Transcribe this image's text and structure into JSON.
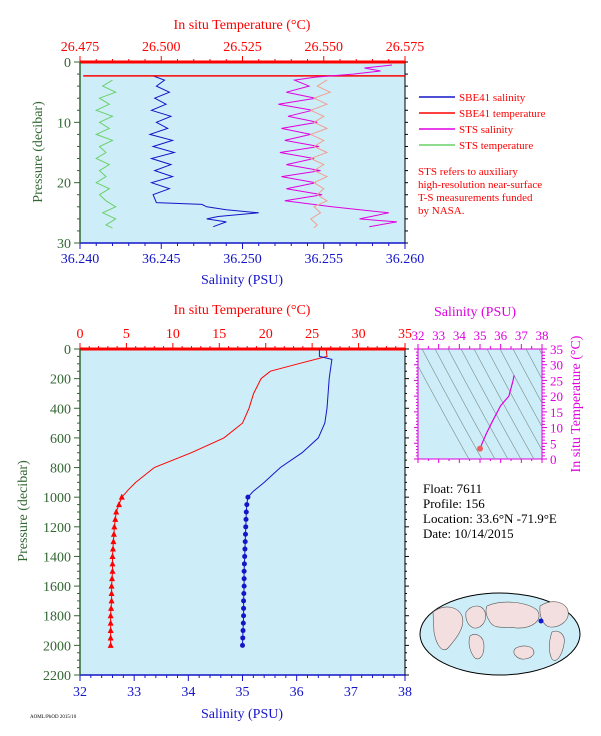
{
  "colors": {
    "red": "#ff0000",
    "blue": "#1515c8",
    "magenta": "#e000e0",
    "green": "#6ad06a",
    "salmon": "#f0a090",
    "darkgreen": "#336633",
    "plotbg": "#cdeef8"
  },
  "chart_data": [
    {
      "type": "line",
      "name": "near-surface profile",
      "title_top": "In situ Temperature (°C)",
      "xlabel": "Salinity (PSU)",
      "ylabel": "Pressure (decibar)",
      "top_ticks": [
        "26.475",
        "26.500",
        "26.525",
        "26.550",
        "26.575"
      ],
      "top_range": [
        26.475,
        26.575
      ],
      "bottom_ticks": [
        "36.240",
        "36.245",
        "36.250",
        "36.255",
        "36.260"
      ],
      "bottom_range": [
        36.24,
        36.26
      ],
      "y_ticks": [
        "0",
        "10",
        "20",
        "30"
      ],
      "ylim": [
        30,
        0
      ],
      "legend": {
        "items": [
          {
            "label": "SBE41 salinity",
            "color": "#1515c8"
          },
          {
            "label": "SBE41 temperature",
            "color": "#ff0000"
          },
          {
            "label": "STS salinity",
            "color": "#e000e0"
          },
          {
            "label": "STS temperature",
            "color": "#6ad06a"
          }
        ],
        "note": [
          "STS refers to auxiliary",
          "high-resolution near-surface",
          "T-S measurements funded",
          "by NASA."
        ]
      },
      "series": [
        {
          "name": "SBE41 salinity",
          "axis": "bottom",
          "points": [
            [
              36.2445,
              2.3
            ],
            [
              36.2452,
              3
            ],
            [
              36.2447,
              4
            ],
            [
              36.2455,
              5
            ],
            [
              36.2446,
              6
            ],
            [
              36.2453,
              7
            ],
            [
              36.2444,
              8
            ],
            [
              36.2456,
              9
            ],
            [
              36.2447,
              10
            ],
            [
              36.2454,
              11
            ],
            [
              36.2443,
              12
            ],
            [
              36.2457,
              13
            ],
            [
              36.2445,
              14
            ],
            [
              36.2458,
              15
            ],
            [
              36.2444,
              16
            ],
            [
              36.2456,
              17
            ],
            [
              36.2446,
              18
            ],
            [
              36.2457,
              19
            ],
            [
              36.2444,
              20
            ],
            [
              36.2455,
              21
            ],
            [
              36.2445,
              22
            ],
            [
              36.2447,
              23.3
            ],
            [
              36.2475,
              23.6
            ],
            [
              36.2478,
              24
            ],
            [
              36.249,
              24.5
            ],
            [
              36.251,
              25
            ],
            [
              36.2485,
              25.6
            ],
            [
              36.2478,
              26
            ],
            [
              36.249,
              26.5
            ],
            [
              36.2482,
              27.3
            ]
          ]
        },
        {
          "name": "SBE41 temperature",
          "axis": "top",
          "points": [
            [
              26.476,
              2.3
            ],
            [
              26.575,
              2.3
            ]
          ]
        },
        {
          "name": "STS salinity",
          "axis": "bottom",
          "points": [
            [
              36.2592,
              0.5
            ],
            [
              36.2575,
              1
            ],
            [
              36.2585,
              1.5
            ],
            [
              36.2568,
              2
            ],
            [
              36.2545,
              2.5
            ],
            [
              36.2532,
              3
            ],
            [
              36.2541,
              4
            ],
            [
              36.2527,
              5
            ],
            [
              36.2545,
              6
            ],
            [
              36.2522,
              7
            ],
            [
              36.2543,
              8
            ],
            [
              36.2528,
              9
            ],
            [
              36.2546,
              10
            ],
            [
              36.2524,
              11
            ],
            [
              36.2542,
              12
            ],
            [
              36.2526,
              13
            ],
            [
              36.2547,
              14
            ],
            [
              36.2523,
              15
            ],
            [
              36.2544,
              16
            ],
            [
              36.2527,
              17
            ],
            [
              36.2548,
              18
            ],
            [
              36.2524,
              19
            ],
            [
              36.2545,
              20
            ],
            [
              36.2527,
              21
            ],
            [
              36.2549,
              22
            ],
            [
              36.2526,
              23
            ],
            [
              36.2555,
              24
            ],
            [
              36.259,
              25
            ],
            [
              36.2572,
              26
            ],
            [
              36.2595,
              26.5
            ],
            [
              36.2578,
              27.3
            ]
          ]
        },
        {
          "name": "STS temperature",
          "axis": "top",
          "points": [
            [
              26.485,
              3
            ],
            [
              26.482,
              4
            ],
            [
              26.486,
              5
            ],
            [
              26.481,
              6
            ],
            [
              26.484,
              7
            ],
            [
              26.48,
              8
            ],
            [
              26.485,
              9
            ],
            [
              26.481,
              10
            ],
            [
              26.484,
              11
            ],
            [
              26.48,
              12
            ],
            [
              26.485,
              13
            ],
            [
              26.481,
              14
            ],
            [
              26.483,
              15
            ],
            [
              26.48,
              16
            ],
            [
              26.484,
              17
            ],
            [
              26.481,
              18
            ],
            [
              26.483,
              19
            ],
            [
              26.48,
              20
            ],
            [
              26.484,
              21
            ],
            [
              26.481,
              22
            ],
            [
              26.483,
              23
            ],
            [
              26.486,
              24
            ],
            [
              26.482,
              25
            ],
            [
              26.486,
              26
            ],
            [
              26.483,
              27
            ],
            [
              26.485,
              27.5
            ]
          ]
        },
        {
          "name": "STS near-surface temperature (salmon)",
          "axis": "top",
          "points": [
            [
              26.551,
              3
            ],
            [
              26.548,
              4
            ],
            [
              26.552,
              5
            ],
            [
              26.547,
              6
            ],
            [
              26.551,
              7
            ],
            [
              26.546,
              8
            ],
            [
              26.55,
              9
            ],
            [
              26.547,
              10
            ],
            [
              26.551,
              11
            ],
            [
              26.546,
              12
            ],
            [
              26.55,
              13
            ],
            [
              26.547,
              14
            ],
            [
              26.551,
              15
            ],
            [
              26.546,
              16
            ],
            [
              26.55,
              17
            ],
            [
              26.547,
              18
            ],
            [
              26.551,
              19
            ],
            [
              26.547,
              20
            ],
            [
              26.55,
              21
            ],
            [
              26.548,
              22
            ],
            [
              26.551,
              23
            ],
            [
              26.547,
              24
            ],
            [
              26.549,
              25
            ],
            [
              26.546,
              26
            ],
            [
              26.548,
              27
            ],
            [
              26.547,
              27.5
            ]
          ]
        }
      ]
    },
    {
      "type": "line",
      "name": "full profile",
      "title_top": "In situ Temperature (°C)",
      "xlabel": "Salinity (PSU)",
      "ylabel": "Pressure (decibar)",
      "top_ticks": [
        "0",
        "5",
        "10",
        "15",
        "20",
        "25",
        "30",
        "35"
      ],
      "top_range": [
        0,
        35
      ],
      "bottom_ticks": [
        "32",
        "33",
        "34",
        "35",
        "36",
        "37",
        "38"
      ],
      "bottom_range": [
        32,
        38
      ],
      "y_ticks": [
        "0",
        "200",
        "400",
        "600",
        "800",
        "1000",
        "1200",
        "1400",
        "1600",
        "1800",
        "2000",
        "2200"
      ],
      "ylim": [
        2200,
        0
      ],
      "temperature": [
        [
          26.5,
          0
        ],
        [
          26.6,
          50
        ],
        [
          23.5,
          100
        ],
        [
          20.5,
          150
        ],
        [
          19.5,
          200
        ],
        [
          18.7,
          300
        ],
        [
          18.2,
          400
        ],
        [
          17.5,
          500
        ],
        [
          15.5,
          600
        ],
        [
          12,
          700
        ],
        [
          8,
          800
        ],
        [
          6,
          900
        ],
        [
          5.2,
          950
        ],
        [
          4.5,
          1000
        ],
        [
          4.2,
          1050
        ],
        [
          3.9,
          1100
        ],
        [
          3.8,
          1150
        ],
        [
          3.7,
          1200
        ],
        [
          3.6,
          1300
        ],
        [
          3.5,
          1400
        ],
        [
          3.5,
          1500
        ],
        [
          3.4,
          1600
        ],
        [
          3.4,
          1700
        ],
        [
          3.3,
          1800
        ],
        [
          3.3,
          1900
        ],
        [
          3.3,
          2000
        ]
      ],
      "temperature_markers": [
        1000,
        1050,
        1100,
        1150,
        1200,
        1250,
        1300,
        1350,
        1400,
        1450,
        1500,
        1550,
        1600,
        1650,
        1700,
        1750,
        1800,
        1850,
        1900,
        1950,
        2000
      ],
      "salinity": [
        [
          36.42,
          0
        ],
        [
          36.42,
          50
        ],
        [
          36.65,
          70
        ],
        [
          36.62,
          150
        ],
        [
          36.6,
          200
        ],
        [
          36.58,
          300
        ],
        [
          36.56,
          400
        ],
        [
          36.52,
          500
        ],
        [
          36.4,
          600
        ],
        [
          36.1,
          700
        ],
        [
          35.7,
          800
        ],
        [
          35.4,
          900
        ],
        [
          35.2,
          960
        ],
        [
          35.1,
          1000
        ],
        [
          35.08,
          1050
        ],
        [
          35.07,
          1100
        ],
        [
          35.06,
          1200
        ],
        [
          35.05,
          1300
        ],
        [
          35.04,
          1400
        ],
        [
          35.03,
          1500
        ],
        [
          35.03,
          1600
        ],
        [
          35.02,
          1700
        ],
        [
          35.02,
          1800
        ],
        [
          35.01,
          1900
        ],
        [
          35.0,
          2000
        ]
      ],
      "salinity_markers": [
        1000,
        1050,
        1100,
        1150,
        1200,
        1250,
        1300,
        1350,
        1400,
        1450,
        1500,
        1550,
        1600,
        1650,
        1700,
        1750,
        1800,
        1850,
        1900,
        1950,
        2000
      ]
    },
    {
      "type": "scatter",
      "name": "T-S diagram",
      "xlabel": "Salinity (PSU)",
      "ylabel": "In situ Temperature (°C)",
      "x_ticks": [
        "32",
        "33",
        "34",
        "35",
        "36",
        "37",
        "38"
      ],
      "xlim": [
        32,
        38
      ],
      "y_ticks": [
        "0",
        "5",
        "10",
        "15",
        "20",
        "25",
        "30",
        "35"
      ],
      "ylim": [
        0,
        35
      ],
      "curve": [
        [
          35.0,
          3.3
        ],
        [
          35.05,
          4
        ],
        [
          35.1,
          5
        ],
        [
          35.3,
          8
        ],
        [
          35.6,
          12
        ],
        [
          36.0,
          17
        ],
        [
          36.4,
          20
        ],
        [
          36.6,
          25
        ],
        [
          36.65,
          26.6
        ]
      ]
    }
  ],
  "info": {
    "float": "Float:  7611",
    "profile": "Profile:  156",
    "location": "Location:  33.6°N  -71.9°E",
    "date": "Date:  10/14/2015"
  },
  "footer_mark": "AOML/PhOD 2015/10"
}
